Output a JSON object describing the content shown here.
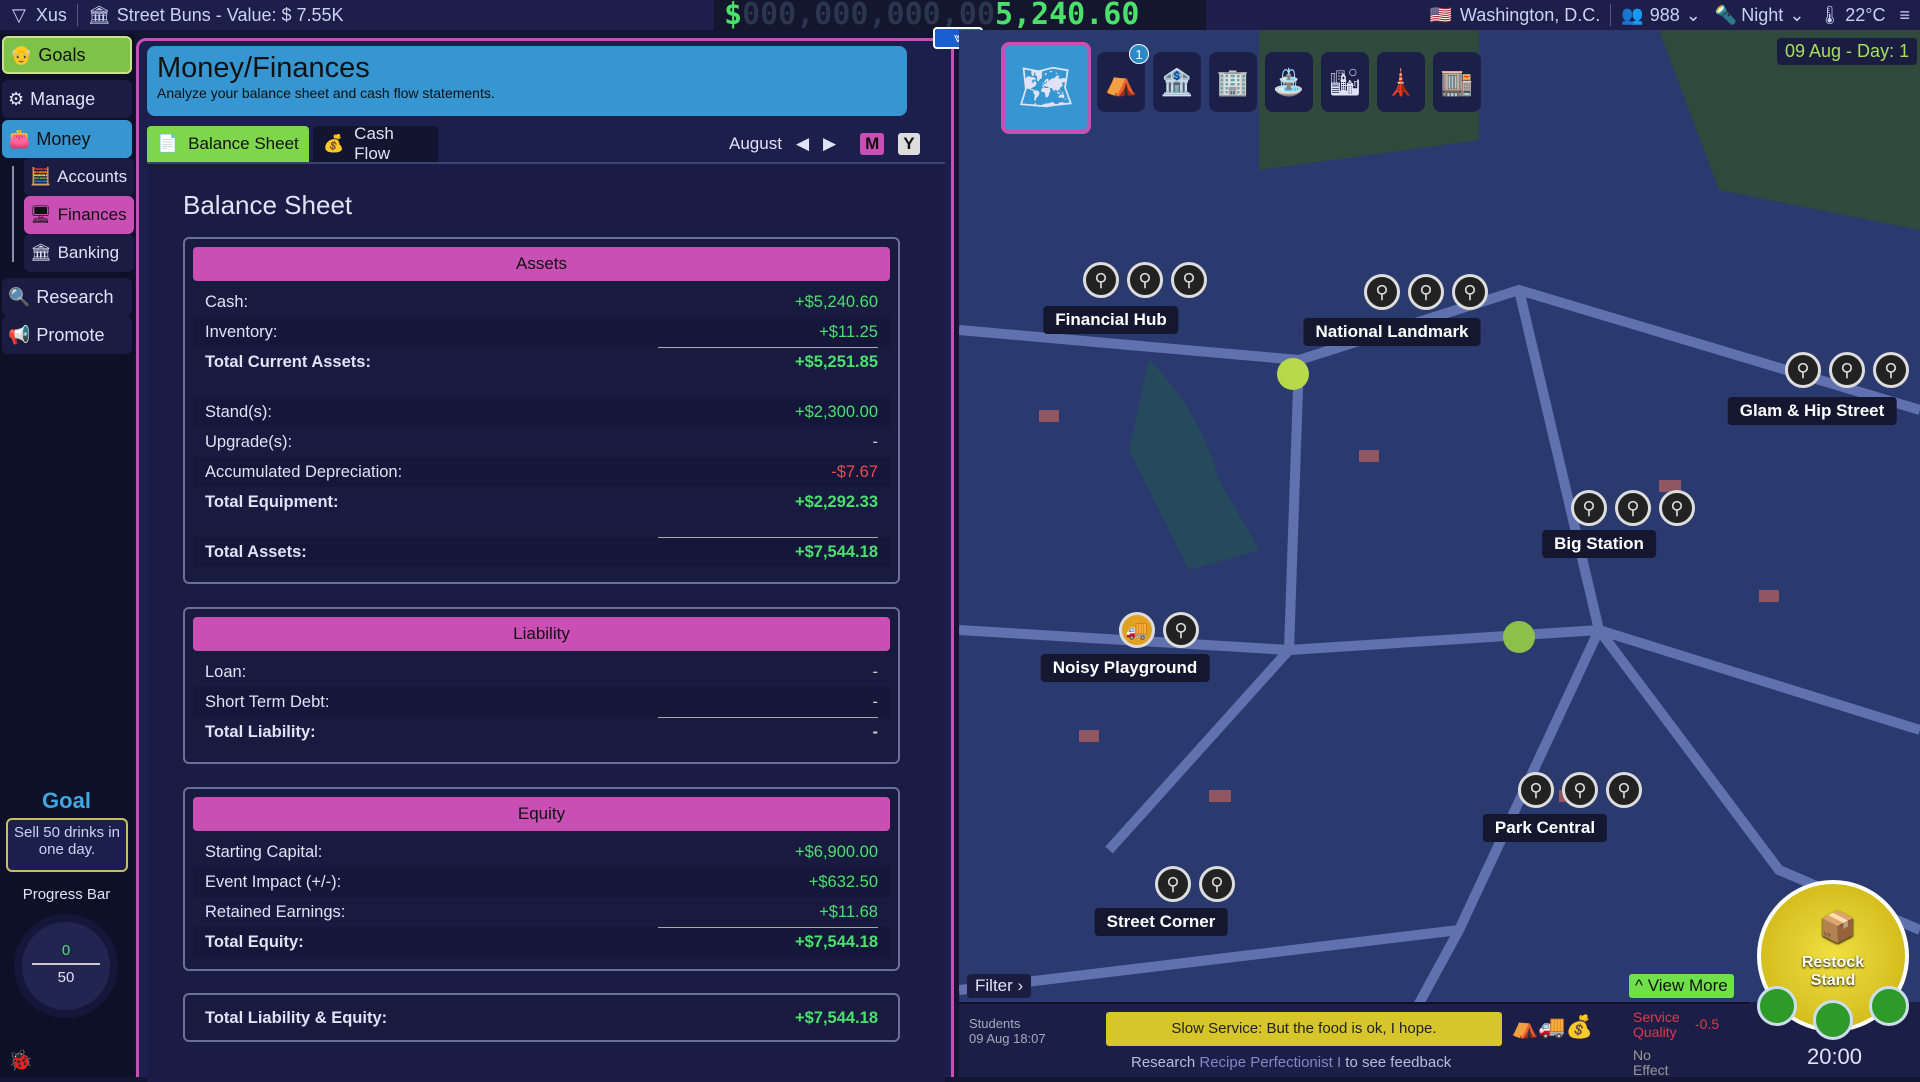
{
  "topbar": {
    "player": "Xus",
    "business": "Street Buns - Value: $ 7.55K",
    "money_prefix": "$",
    "money_dim": "000,000,000,00",
    "money_value": "5,240.60",
    "city": "Washington, D.C.",
    "population": "988",
    "time_of_day": "Night",
    "temperature": "22°C"
  },
  "sidebar": {
    "items": [
      {
        "label": "Goals",
        "icon": "avatar"
      },
      {
        "label": "Manage",
        "icon": "gear-icon"
      },
      {
        "label": "Money",
        "icon": "wallet-icon"
      },
      {
        "label": "Accounts",
        "icon": "calculator-icon"
      },
      {
        "label": "Finances",
        "icon": "monitor-chart-icon"
      },
      {
        "label": "Banking",
        "icon": "bank-icon"
      },
      {
        "label": "Research",
        "icon": "search-icon"
      },
      {
        "label": "Promote",
        "icon": "megaphone-icon"
      }
    ],
    "goal": {
      "title": "Goal",
      "text": "Sell 50 drinks in one day.",
      "progress_label": "Progress Bar",
      "current": "0",
      "target": "50"
    }
  },
  "panel": {
    "title": "Money/Finances",
    "subtitle": "Analyze your balance sheet and cash flow statements.",
    "tabs": [
      {
        "label": "Balance Sheet",
        "active": true
      },
      {
        "label": "Cash Flow",
        "active": false
      }
    ],
    "month": "August",
    "period_m": "M",
    "period_y": "Y",
    "heading": "Balance Sheet",
    "assets": {
      "title": "Assets",
      "rows": [
        {
          "label": "Cash:",
          "value": "+$5,240.60"
        },
        {
          "label": "Inventory:",
          "value": "+$11.25"
        },
        {
          "label": "Total Current Assets:",
          "value": "+$5,251.85"
        },
        {
          "label": "Stand(s):",
          "value": "+$2,300.00"
        },
        {
          "label": "Upgrade(s):",
          "value": "-"
        },
        {
          "label": "Accumulated Depreciation:",
          "value": "-$7.67"
        },
        {
          "label": "Total Equipment:",
          "value": "+$2,292.33"
        },
        {
          "label": "Total Assets:",
          "value": "+$7,544.18"
        }
      ]
    },
    "liability": {
      "title": "Liability",
      "rows": [
        {
          "label": "Loan:",
          "value": "-"
        },
        {
          "label": "Short Term Debt:",
          "value": "-"
        },
        {
          "label": "Total Liability:",
          "value": "-"
        }
      ]
    },
    "equity": {
      "title": "Equity",
      "rows": [
        {
          "label": "Starting Capital:",
          "value": "+$6,900.00"
        },
        {
          "label": "Event Impact (+/-):",
          "value": "+$632.50"
        },
        {
          "label": "Retained Earnings:",
          "value": "+$11.68"
        },
        {
          "label": "Total Equity:",
          "value": "+$7,544.18"
        }
      ]
    },
    "total": {
      "label": "Total Liability & Equity:",
      "value": "+$7,544.18"
    }
  },
  "map": {
    "date": "09 Aug - Day: 1",
    "badge": "1",
    "locations": [
      "Financial Hub",
      "National Landmark",
      "Glam & Hip Street",
      "Big Station",
      "Noisy Playground",
      "Park Central",
      "Street Corner"
    ],
    "filter": "Filter",
    "view_more": "View More"
  },
  "feed": {
    "customer": "Students",
    "time": "09 Aug 18:07",
    "message": "Slow Service: But the food is ok, I hope.",
    "research_pre": "Research",
    "research_item": "Recipe Perfectionist I",
    "research_post": "to see feedback",
    "effect_label": "Service Quality",
    "effect_value": "-0.5",
    "no_effect": "No Effect"
  },
  "restock": {
    "label": "Restock Stand",
    "clock": "20:00"
  },
  "colors": {
    "accent_pink": "#c94fb5",
    "positive": "#49e06b",
    "negative": "#f04b4b",
    "header_blue": "#3596d2",
    "tab_green": "#7ed64a"
  }
}
